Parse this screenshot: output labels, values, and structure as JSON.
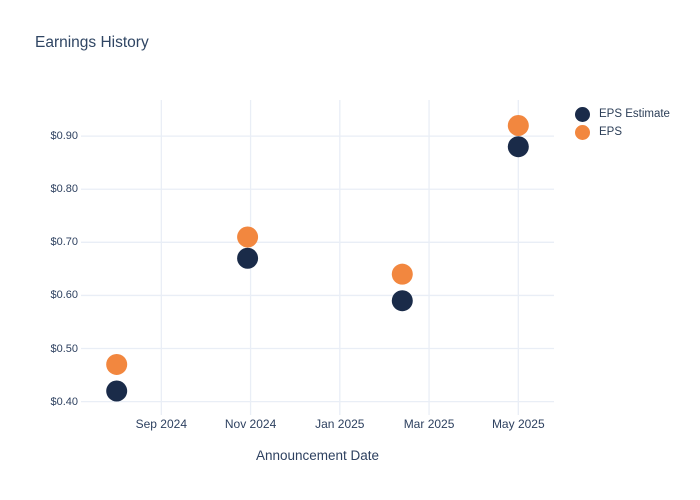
{
  "chart_data": {
    "type": "scatter",
    "title": "Earnings History",
    "xlabel": "Announcement Date",
    "ylabel": "",
    "x_dates": [
      "2024-08-01",
      "2024-10-29",
      "2025-02-13",
      "2025-05-01"
    ],
    "series": [
      {
        "name": "EPS Estimate",
        "color": "#1a2b49",
        "values": [
          0.42,
          0.67,
          0.59,
          0.88
        ]
      },
      {
        "name": "EPS",
        "color": "#f2873f",
        "values": [
          0.47,
          0.71,
          0.64,
          0.92
        ]
      }
    ],
    "yticks": [
      {
        "value": 0.4,
        "label": "$0.40"
      },
      {
        "value": 0.5,
        "label": "$0.50"
      },
      {
        "value": 0.6,
        "label": "$0.60"
      },
      {
        "value": 0.7,
        "label": "$0.70"
      },
      {
        "value": 0.8,
        "label": "$0.80"
      },
      {
        "value": 0.9,
        "label": "$0.90"
      }
    ],
    "xticks": [
      {
        "date": "2024-09-01",
        "label": "Sep 2024"
      },
      {
        "date": "2024-11-01",
        "label": "Nov 2024"
      },
      {
        "date": "2025-01-01",
        "label": "Jan 2025"
      },
      {
        "date": "2025-03-01",
        "label": "Mar 2025"
      },
      {
        "date": "2025-05-01",
        "label": "May 2025"
      }
    ],
    "ylim": [
      0.388,
      0.968
    ],
    "xlim_dates": [
      "2024-07-07",
      "2025-05-25"
    ],
    "grid": true,
    "legend_position": "outside-top-right",
    "marker_diameter_px": 21
  },
  "colors": {
    "background": "#ffffff",
    "gridline": "#e9eef6",
    "title_text": "#2f4563",
    "axis_text": "#2e4160",
    "legend_text": "#2c3e57"
  }
}
